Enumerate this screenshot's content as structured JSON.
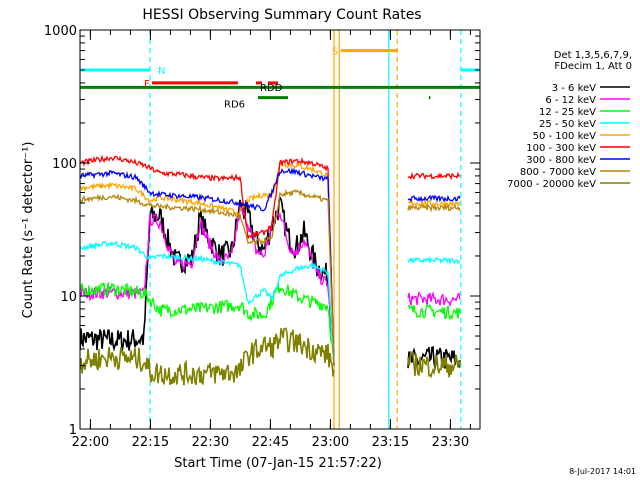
{
  "chart_data": {
    "type": "line",
    "title": "HESSI Observing Summary Count Rates",
    "xlabel": "Start Time (07-Jan-15 21:57:22)",
    "ylabel": "Count Rate (s⁻¹ detector⁻¹)",
    "x_unit": "minutes after 21:57:22",
    "xlim": [
      0,
      100
    ],
    "ylim": [
      1,
      1000
    ],
    "yscale": "log",
    "x_ticks": [
      {
        "x": 2.6,
        "label": "22:00"
      },
      {
        "x": 17.6,
        "label": "22:15"
      },
      {
        "x": 32.6,
        "label": "22:30"
      },
      {
        "x": 47.6,
        "label": "22:45"
      },
      {
        "x": 62.6,
        "label": "23:00"
      },
      {
        "x": 77.6,
        "label": "23:15"
      },
      {
        "x": 92.6,
        "label": "23:30"
      }
    ],
    "y_ticks": [
      {
        "y": 1,
        "label": "1"
      },
      {
        "y": 10,
        "label": "10"
      },
      {
        "y": 100,
        "label": "100"
      },
      {
        "y": 1000,
        "label": "1000"
      }
    ],
    "legend": {
      "placement": "right",
      "header": [
        "Det 1,3,5,6,7,9,",
        "FDecim 1, Att 0"
      ]
    },
    "series": [
      {
        "name": "3 - 6 keV",
        "color": "#000000",
        "segments": [
          [
            [
              0,
              4.8
            ],
            [
              10,
              4.6
            ],
            [
              16,
              4.8
            ],
            [
              17.5,
              40
            ],
            [
              20,
              40
            ],
            [
              22,
              26
            ],
            [
              24,
              18
            ],
            [
              28,
              19
            ],
            [
              30,
              38
            ],
            [
              32,
              28
            ],
            [
              35,
              20
            ],
            [
              38,
              22
            ],
            [
              40,
              48
            ],
            [
              42,
              40
            ],
            [
              44,
              26
            ],
            [
              46,
              22
            ],
            [
              48,
              35
            ],
            [
              50,
              48
            ],
            [
              52,
              28
            ],
            [
              54,
              23
            ],
            [
              56,
              30
            ],
            [
              59,
              17
            ],
            [
              62,
              14
            ],
            [
              63.5,
              4.5
            ]
          ],
          [
            [
              82,
              3.2
            ],
            [
              88,
              3.4
            ],
            [
              95,
              3.3
            ]
          ]
        ]
      },
      {
        "name": "6 - 12 keV",
        "color": "#ff00ff",
        "segments": [
          [
            [
              0,
              10.5
            ],
            [
              8,
              10.6
            ],
            [
              16,
              10.4
            ],
            [
              17.5,
              38
            ],
            [
              20,
              36
            ],
            [
              22,
              24
            ],
            [
              24,
              17
            ],
            [
              28,
              18
            ],
            [
              30,
              36
            ],
            [
              32,
              26
            ],
            [
              35,
              18
            ],
            [
              38,
              20
            ],
            [
              40,
              44
            ],
            [
              42,
              36
            ],
            [
              44,
              22
            ],
            [
              46,
              20
            ],
            [
              48,
              33
            ],
            [
              50,
              44
            ],
            [
              52,
              25
            ],
            [
              54,
              21
            ],
            [
              56,
              27
            ],
            [
              59,
              15
            ],
            [
              62,
              12
            ],
            [
              63.5,
              3
            ]
          ],
          [
            [
              82,
              9.5
            ],
            [
              95,
              9.4
            ]
          ]
        ]
      },
      {
        "name": "12 - 25 keV",
        "color": "#00ff00",
        "segments": [
          [
            [
              0,
              11
            ],
            [
              8,
              11.4
            ],
            [
              16,
              10.5
            ],
            [
              20,
              7.8
            ],
            [
              30,
              8
            ],
            [
              40,
              8.6
            ],
            [
              42,
              7.4
            ],
            [
              46,
              7.2
            ],
            [
              50,
              12
            ],
            [
              54,
              10
            ],
            [
              58,
              9
            ],
            [
              62,
              8.5
            ],
            [
              63.5,
              3
            ]
          ],
          [
            [
              82,
              7.8
            ],
            [
              95,
              7.5
            ]
          ]
        ]
      },
      {
        "name": "25 - 50 keV",
        "color": "#00ffff",
        "segments": [
          [
            [
              0,
              23
            ],
            [
              8,
              25
            ],
            [
              14,
              23
            ],
            [
              17.5,
              19
            ],
            [
              20,
              20
            ],
            [
              30,
              19
            ],
            [
              40,
              17
            ],
            [
              42,
              9
            ],
            [
              46,
              11
            ],
            [
              48,
              9.5
            ],
            [
              50,
              14
            ],
            [
              54,
              16
            ],
            [
              58,
              17
            ],
            [
              62,
              15
            ],
            [
              63.5,
              3
            ]
          ],
          [
            [
              82,
              18.5
            ],
            [
              95,
              18.5
            ]
          ]
        ]
      },
      {
        "name": "50 - 100 keV",
        "color": "#ffa500",
        "segments": [
          [
            [
              0,
              65
            ],
            [
              8,
              68
            ],
            [
              14,
              64
            ],
            [
              17.5,
              52
            ],
            [
              20,
              55
            ],
            [
              30,
              50
            ],
            [
              40,
              42
            ],
            [
              42,
              53
            ],
            [
              46,
              58
            ],
            [
              48,
              56
            ],
            [
              50,
              98
            ],
            [
              54,
              96
            ],
            [
              58,
              90
            ],
            [
              62,
              80
            ],
            [
              63.5,
              3
            ]
          ],
          [
            [
              82,
              50
            ],
            [
              95,
              49
            ]
          ]
        ]
      },
      {
        "name": "100 - 300 keV",
        "color": "#ff0000",
        "segments": [
          [
            [
              0,
              100
            ],
            [
              4,
              105
            ],
            [
              8,
              110
            ],
            [
              12,
              104
            ],
            [
              16,
              96
            ],
            [
              20,
              84
            ],
            [
              25,
              82
            ],
            [
              30,
              78
            ],
            [
              35,
              76
            ],
            [
              40,
              78
            ],
            [
              42,
              28
            ],
            [
              46,
              30
            ],
            [
              48,
              34
            ],
            [
              50,
              100
            ],
            [
              54,
              104
            ],
            [
              58,
              100
            ],
            [
              62,
              90
            ],
            [
              63.5,
              3
            ]
          ],
          [
            [
              82,
              80
            ],
            [
              95,
              80
            ]
          ]
        ]
      },
      {
        "name": "300 - 800 keV",
        "color": "#0000ff",
        "segments": [
          [
            [
              0,
              80
            ],
            [
              8,
              84
            ],
            [
              14,
              78
            ],
            [
              17.5,
              60
            ],
            [
              20,
              58
            ],
            [
              30,
              55
            ],
            [
              40,
              50
            ],
            [
              42,
              48
            ],
            [
              46,
              45
            ],
            [
              48,
              60
            ],
            [
              50,
              88
            ],
            [
              54,
              86
            ],
            [
              58,
              80
            ],
            [
              62,
              75
            ],
            [
              63.5,
              3
            ]
          ],
          [
            [
              82,
              54
            ],
            [
              95,
              54
            ]
          ]
        ]
      },
      {
        "name": "800 - 7000 keV",
        "color": "#b8860b",
        "segments": [
          [
            [
              0,
              53
            ],
            [
              8,
              56
            ],
            [
              14,
              52
            ],
            [
              17.5,
              48
            ],
            [
              20,
              47
            ],
            [
              30,
              45
            ],
            [
              40,
              40
            ],
            [
              42,
              25
            ],
            [
              46,
              26
            ],
            [
              48,
              27
            ],
            [
              50,
              58
            ],
            [
              54,
              60
            ],
            [
              58,
              56
            ],
            [
              62,
              52
            ],
            [
              63.5,
              3
            ]
          ],
          [
            [
              82,
              46
            ],
            [
              95,
              46
            ]
          ]
        ]
      },
      {
        "name": "7000 - 20000 keV",
        "color": "#808000",
        "segments": [
          [
            [
              0,
              3.2
            ],
            [
              8,
              3.5
            ],
            [
              16,
              3.3
            ],
            [
              17.5,
              2.7
            ],
            [
              20,
              2.6
            ],
            [
              30,
              2.6
            ],
            [
              40,
              2.7
            ],
            [
              42,
              3.6
            ],
            [
              46,
              4.2
            ],
            [
              48,
              4.1
            ],
            [
              50,
              4.8
            ],
            [
              54,
              4.5
            ],
            [
              58,
              4.0
            ],
            [
              62,
              3.6
            ],
            [
              63.5,
              2.8
            ]
          ],
          [
            [
              82,
              3.1
            ],
            [
              88,
              3.0
            ],
            [
              95,
              3.0
            ]
          ]
        ]
      }
    ],
    "verticals": [
      {
        "x": 0,
        "color": "#00ffff",
        "dashed": false
      },
      {
        "x": 17.5,
        "color": "#00ffff",
        "dashed": true
      },
      {
        "x": 63.5,
        "color": "#ffa500",
        "dashed": false
      },
      {
        "x": 64.8,
        "color": "#ffa500",
        "dashed": false
      },
      {
        "x": 77.2,
        "color": "#00ffff",
        "dashed": false
      },
      {
        "x": 79.3,
        "color": "#ffa500",
        "dashed": true
      },
      {
        "x": 95.2,
        "color": "#00ffff",
        "dashed": true
      }
    ],
    "flags": [
      {
        "label": "N",
        "color": "#00ffff",
        "y": 500,
        "segments": [
          [
            0,
            17.5
          ],
          [
            95.2,
            100
          ]
        ],
        "label_x": 19.5
      },
      {
        "label": "F",
        "color": "#ff0000",
        "y": 400,
        "segments": [
          [
            18,
            39.5
          ],
          [
            44,
            45.5
          ],
          [
            47,
            49.5
          ]
        ],
        "label_x": 16
      },
      {
        "label": "RDD",
        "color": "#ff0000",
        "y": 400,
        "segments": [],
        "label_x": 45
      },
      {
        "label": "S",
        "color": "#ffa500",
        "y": 700,
        "segments": [
          [
            65.2,
            79.3
          ]
        ],
        "label_x": 63
      },
      {
        "label": "RD6",
        "color": "#008000",
        "y": 310,
        "segments": [
          [
            44.5,
            52
          ],
          [
            87.2,
            87.6
          ]
        ],
        "label_x": 36
      },
      {
        "label": "",
        "color": "#008000",
        "y": 370,
        "segments": [
          [
            0,
            100
          ]
        ],
        "label_x": 0
      }
    ],
    "footer_date": "8-Jul-2017 14:01"
  }
}
